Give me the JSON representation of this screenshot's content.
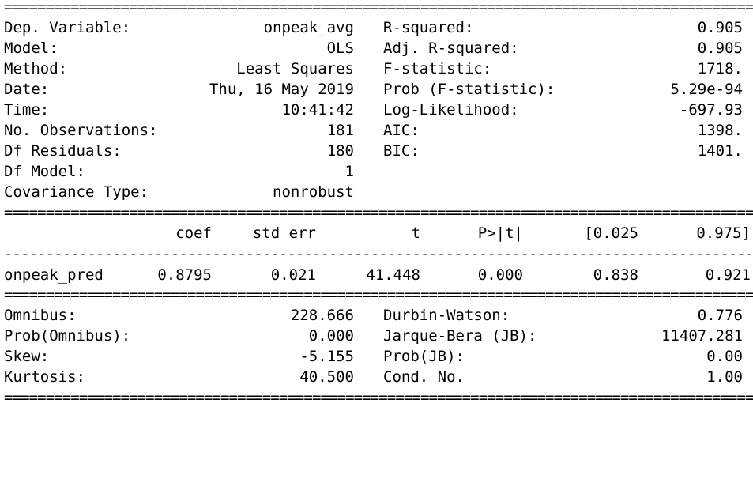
{
  "top_left": [
    {
      "label": "Dep. Variable:",
      "value": "onpeak_avg"
    },
    {
      "label": "Model:",
      "value": "OLS"
    },
    {
      "label": "Method:",
      "value": "Least Squares"
    },
    {
      "label": "Date:",
      "value": "Thu, 16 May 2019"
    },
    {
      "label": "Time:",
      "value": "10:41:42"
    },
    {
      "label": "No. Observations:",
      "value": "181"
    },
    {
      "label": "Df Residuals:",
      "value": "180"
    },
    {
      "label": "Df Model:",
      "value": "1"
    },
    {
      "label": "Covariance Type:",
      "value": "nonrobust"
    }
  ],
  "top_right": [
    {
      "label": "R-squared:",
      "value": "0.905"
    },
    {
      "label": "Adj. R-squared:",
      "value": "0.905"
    },
    {
      "label": "F-statistic:",
      "value": "1718."
    },
    {
      "label": "Prob (F-statistic):",
      "value": "5.29e-94"
    },
    {
      "label": "Log-Likelihood:",
      "value": "-697.93"
    },
    {
      "label": "AIC:",
      "value": "1398."
    },
    {
      "label": "BIC:",
      "value": "1401."
    }
  ],
  "coef_header": [
    "coef",
    "std err",
    "t",
    "P>|t|",
    "[0.025",
    "0.975]"
  ],
  "coef_rows": [
    {
      "name": "onpeak_pred",
      "values": [
        "0.8795",
        "0.021",
        "41.448",
        "0.000",
        "0.838",
        "0.921"
      ]
    }
  ],
  "bottom_left": [
    {
      "label": "Omnibus:",
      "value": "228.666"
    },
    {
      "label": "Prob(Omnibus):",
      "value": "0.000"
    },
    {
      "label": "Skew:",
      "value": "-5.155"
    },
    {
      "label": "Kurtosis:",
      "value": "40.500"
    }
  ],
  "bottom_right": [
    {
      "label": "Durbin-Watson:",
      "value": "0.776"
    },
    {
      "label": "Jarque-Bera (JB):",
      "value": "11407.281"
    },
    {
      "label": "Prob(JB):",
      "value": "0.00"
    },
    {
      "label": "Cond. No.",
      "value": "1.00"
    }
  ]
}
